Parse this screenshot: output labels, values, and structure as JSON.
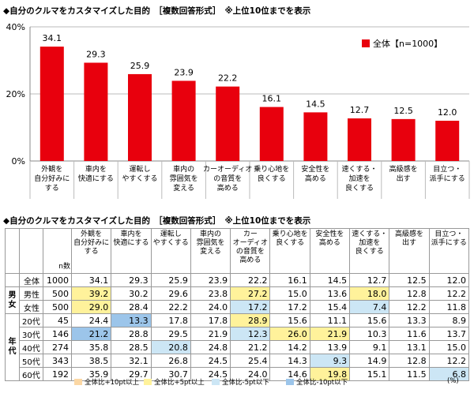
{
  "chart_title": "◆自分のクルマをカスタマイズした目的　［複数回答形式］　※上位10位までを表示",
  "table_title": "◆自分のクルマをカスタマイズした目的　［複数回答形式］　※上位10位までを表示",
  "colors": {
    "bar": "#e8000d",
    "orange": "#fbd7a4",
    "yellow": "#fff29b",
    "lightblue": "#cce6f5",
    "blue": "#9cc5ea"
  },
  "chart_data": {
    "type": "bar",
    "categories": [
      "外観を\n自分好みに\nする",
      "車内を\n快適にする",
      "運転し\nやすくする",
      "車内の\n雰囲気を\n変える",
      "カーオーディオ\nの音質を\n高める",
      "乗り心地を\n良くする",
      "安全性を\n高める",
      "速くする・\n加速を\n良くする",
      "高級感を\n出す",
      "目立つ・\n派手にする"
    ],
    "series": [
      {
        "name": "全体【n=1000】",
        "values": [
          34.1,
          29.3,
          25.9,
          23.9,
          22.2,
          16.1,
          14.5,
          12.7,
          12.5,
          12.0
        ]
      }
    ],
    "value_labels": [
      "34.1",
      "29.3",
      "25.9",
      "23.9",
      "22.2",
      "16.1",
      "14.5",
      "12.7",
      "12.5",
      "12.0"
    ],
    "ylim": [
      0,
      40
    ],
    "yticks": [
      "0%",
      "20%",
      "40%"
    ],
    "legend_position": "top-right",
    "grid": true
  },
  "table": {
    "n_header": "n数",
    "headers": [
      "外観を\n自分好みに\nする",
      "車内を\n快適にする",
      "運転し\nやすくする",
      "車内の\n雰囲気を\n変える",
      "カー\nオーディオ\nの音質を\n高める",
      "乗り心地を\n良くする",
      "安全性を\n高める",
      "速くする・\n加速を\n良くする",
      "高級感を\n出す",
      "目立つ・\n派手にする"
    ],
    "rows": [
      {
        "group": "",
        "label": "全体",
        "n": "1000",
        "values": [
          "34.1",
          "29.3",
          "25.9",
          "23.9",
          "22.2",
          "16.1",
          "14.5",
          "12.7",
          "12.5",
          "12.0"
        ],
        "highlights": [
          "",
          "",
          "",
          "",
          "",
          "",
          "",
          "",
          "",
          ""
        ]
      },
      {
        "group": "男女",
        "label": "男性",
        "n": "500",
        "values": [
          "39.2",
          "30.2",
          "29.6",
          "23.8",
          "27.2",
          "15.0",
          "13.6",
          "18.0",
          "12.8",
          "12.2"
        ],
        "highlights": [
          "yellow",
          "",
          "",
          "",
          "yellow",
          "",
          "",
          "yellow",
          "",
          ""
        ]
      },
      {
        "group": "",
        "label": "女性",
        "n": "500",
        "values": [
          "29.0",
          "28.4",
          "22.2",
          "24.0",
          "17.2",
          "17.2",
          "15.4",
          "7.4",
          "12.2",
          "11.8"
        ],
        "highlights": [
          "yellow",
          "",
          "",
          "",
          "lightblue",
          "",
          "",
          "lightblue",
          "",
          ""
        ]
      },
      {
        "group": "年代",
        "label": "20代",
        "n": "45",
        "values": [
          "24.4",
          "13.3",
          "17.8",
          "17.8",
          "28.9",
          "15.6",
          "11.1",
          "15.6",
          "13.3",
          "8.9"
        ],
        "highlights": [
          "",
          "blue",
          "",
          "",
          "yellow",
          "",
          "",
          "",
          "",
          ""
        ]
      },
      {
        "group": "",
        "label": "30代",
        "n": "146",
        "values": [
          "21.2",
          "28.8",
          "29.5",
          "21.9",
          "12.3",
          "26.0",
          "21.9",
          "10.3",
          "11.6",
          "13.7"
        ],
        "highlights": [
          "blue",
          "",
          "",
          "",
          "lightblue",
          "yellow",
          "yellow",
          "",
          "",
          ""
        ]
      },
      {
        "group": "",
        "label": "40代",
        "n": "274",
        "values": [
          "35.8",
          "28.5",
          "20.8",
          "24.8",
          "21.2",
          "14.2",
          "13.9",
          "9.1",
          "13.1",
          "15.0"
        ],
        "highlights": [
          "",
          "",
          "lightblue",
          "",
          "",
          "",
          "",
          "",
          "",
          ""
        ]
      },
      {
        "group": "",
        "label": "50代",
        "n": "343",
        "values": [
          "38.5",
          "32.1",
          "26.8",
          "24.5",
          "25.4",
          "14.3",
          "9.3",
          "14.9",
          "12.8",
          "12.2"
        ],
        "highlights": [
          "",
          "",
          "",
          "",
          "",
          "",
          "lightblue",
          "",
          "",
          ""
        ]
      },
      {
        "group": "",
        "label": "60代",
        "n": "192",
        "values": [
          "35.9",
          "29.7",
          "30.7",
          "24.5",
          "24.0",
          "14.6",
          "19.8",
          "15.1",
          "11.5",
          "6.8"
        ],
        "highlights": [
          "",
          "",
          "",
          "",
          "",
          "",
          "yellow",
          "",
          "",
          "lightblue"
        ]
      }
    ]
  },
  "legend": [
    {
      "key": "orange",
      "label": "全体比+10pt以上"
    },
    {
      "key": "yellow",
      "label": "全体比+5pt以上"
    },
    {
      "key": "lightblue",
      "label": "全体比-5pt以下"
    },
    {
      "key": "blue",
      "label": "全体比-10pt以下"
    }
  ],
  "percent_unit": "(%)"
}
